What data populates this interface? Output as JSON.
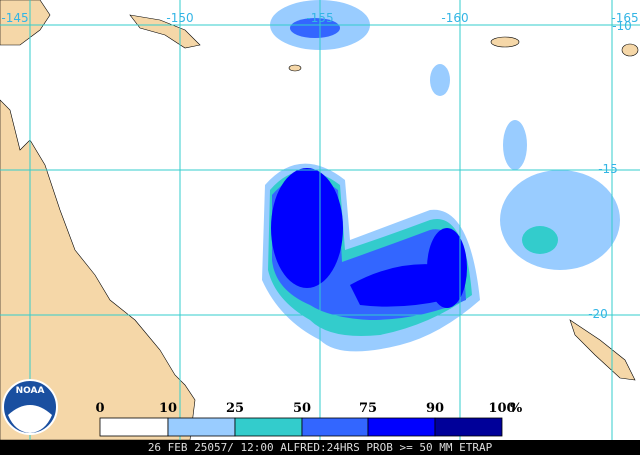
{
  "map": {
    "longitude_labels": [
      "-145",
      "-150",
      "-155",
      "-160",
      "-165"
    ],
    "latitude_labels": [
      "-10",
      "-15",
      "-20"
    ],
    "legend": {
      "labels": [
        "0",
        "10",
        "25",
        "50",
        "75",
        "90",
        "100"
      ],
      "unit": "%",
      "colors": [
        "#ffffff",
        "#99ccff",
        "#33cccc",
        "#3366ff",
        "#0000ff",
        "#000099"
      ]
    },
    "logo": "NOAA",
    "caption": "26 FEB 25057/ 12:00 ALFRED:24HRS PROB >= 50 MM ETRAP"
  }
}
